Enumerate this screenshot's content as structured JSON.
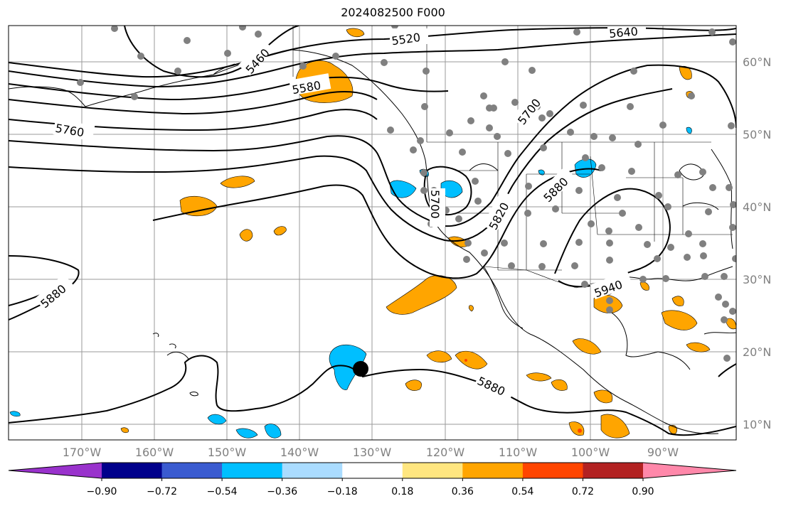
{
  "title": "2024082500 F000",
  "map": {
    "lon_labels": [
      "170°W",
      "160°W",
      "150°W",
      "140°W",
      "130°W",
      "120°W",
      "110°W",
      "100°W",
      "90°W"
    ],
    "lat_labels": [
      "60°N",
      "50°N",
      "40°N",
      "30°N",
      "20°N",
      "10°N"
    ],
    "contour_labels": [
      "5520",
      "5640",
      "5460",
      "5580",
      "5760",
      "5700",
      "5880",
      "5820",
      "5700",
      "5940",
      "5880",
      "5880"
    ],
    "land_color": "#ffffff",
    "grid_color": "#9a9a9a",
    "station_color": "#808080",
    "cyclone_marker_color": "#000000"
  },
  "colorbar": {
    "colors": [
      "#9932cc",
      "#00008b",
      "#3a5bd0",
      "#00bfff",
      "#aadcff",
      "#ffffff",
      "#ffe680",
      "#ffa500",
      "#ff4500",
      "#b22222",
      "#ff88aa"
    ],
    "ticks": [
      "−0.90",
      "−0.72",
      "−0.54",
      "−0.36",
      "−0.18",
      "0.18",
      "0.36",
      "0.54",
      "0.72",
      "0.90"
    ]
  }
}
